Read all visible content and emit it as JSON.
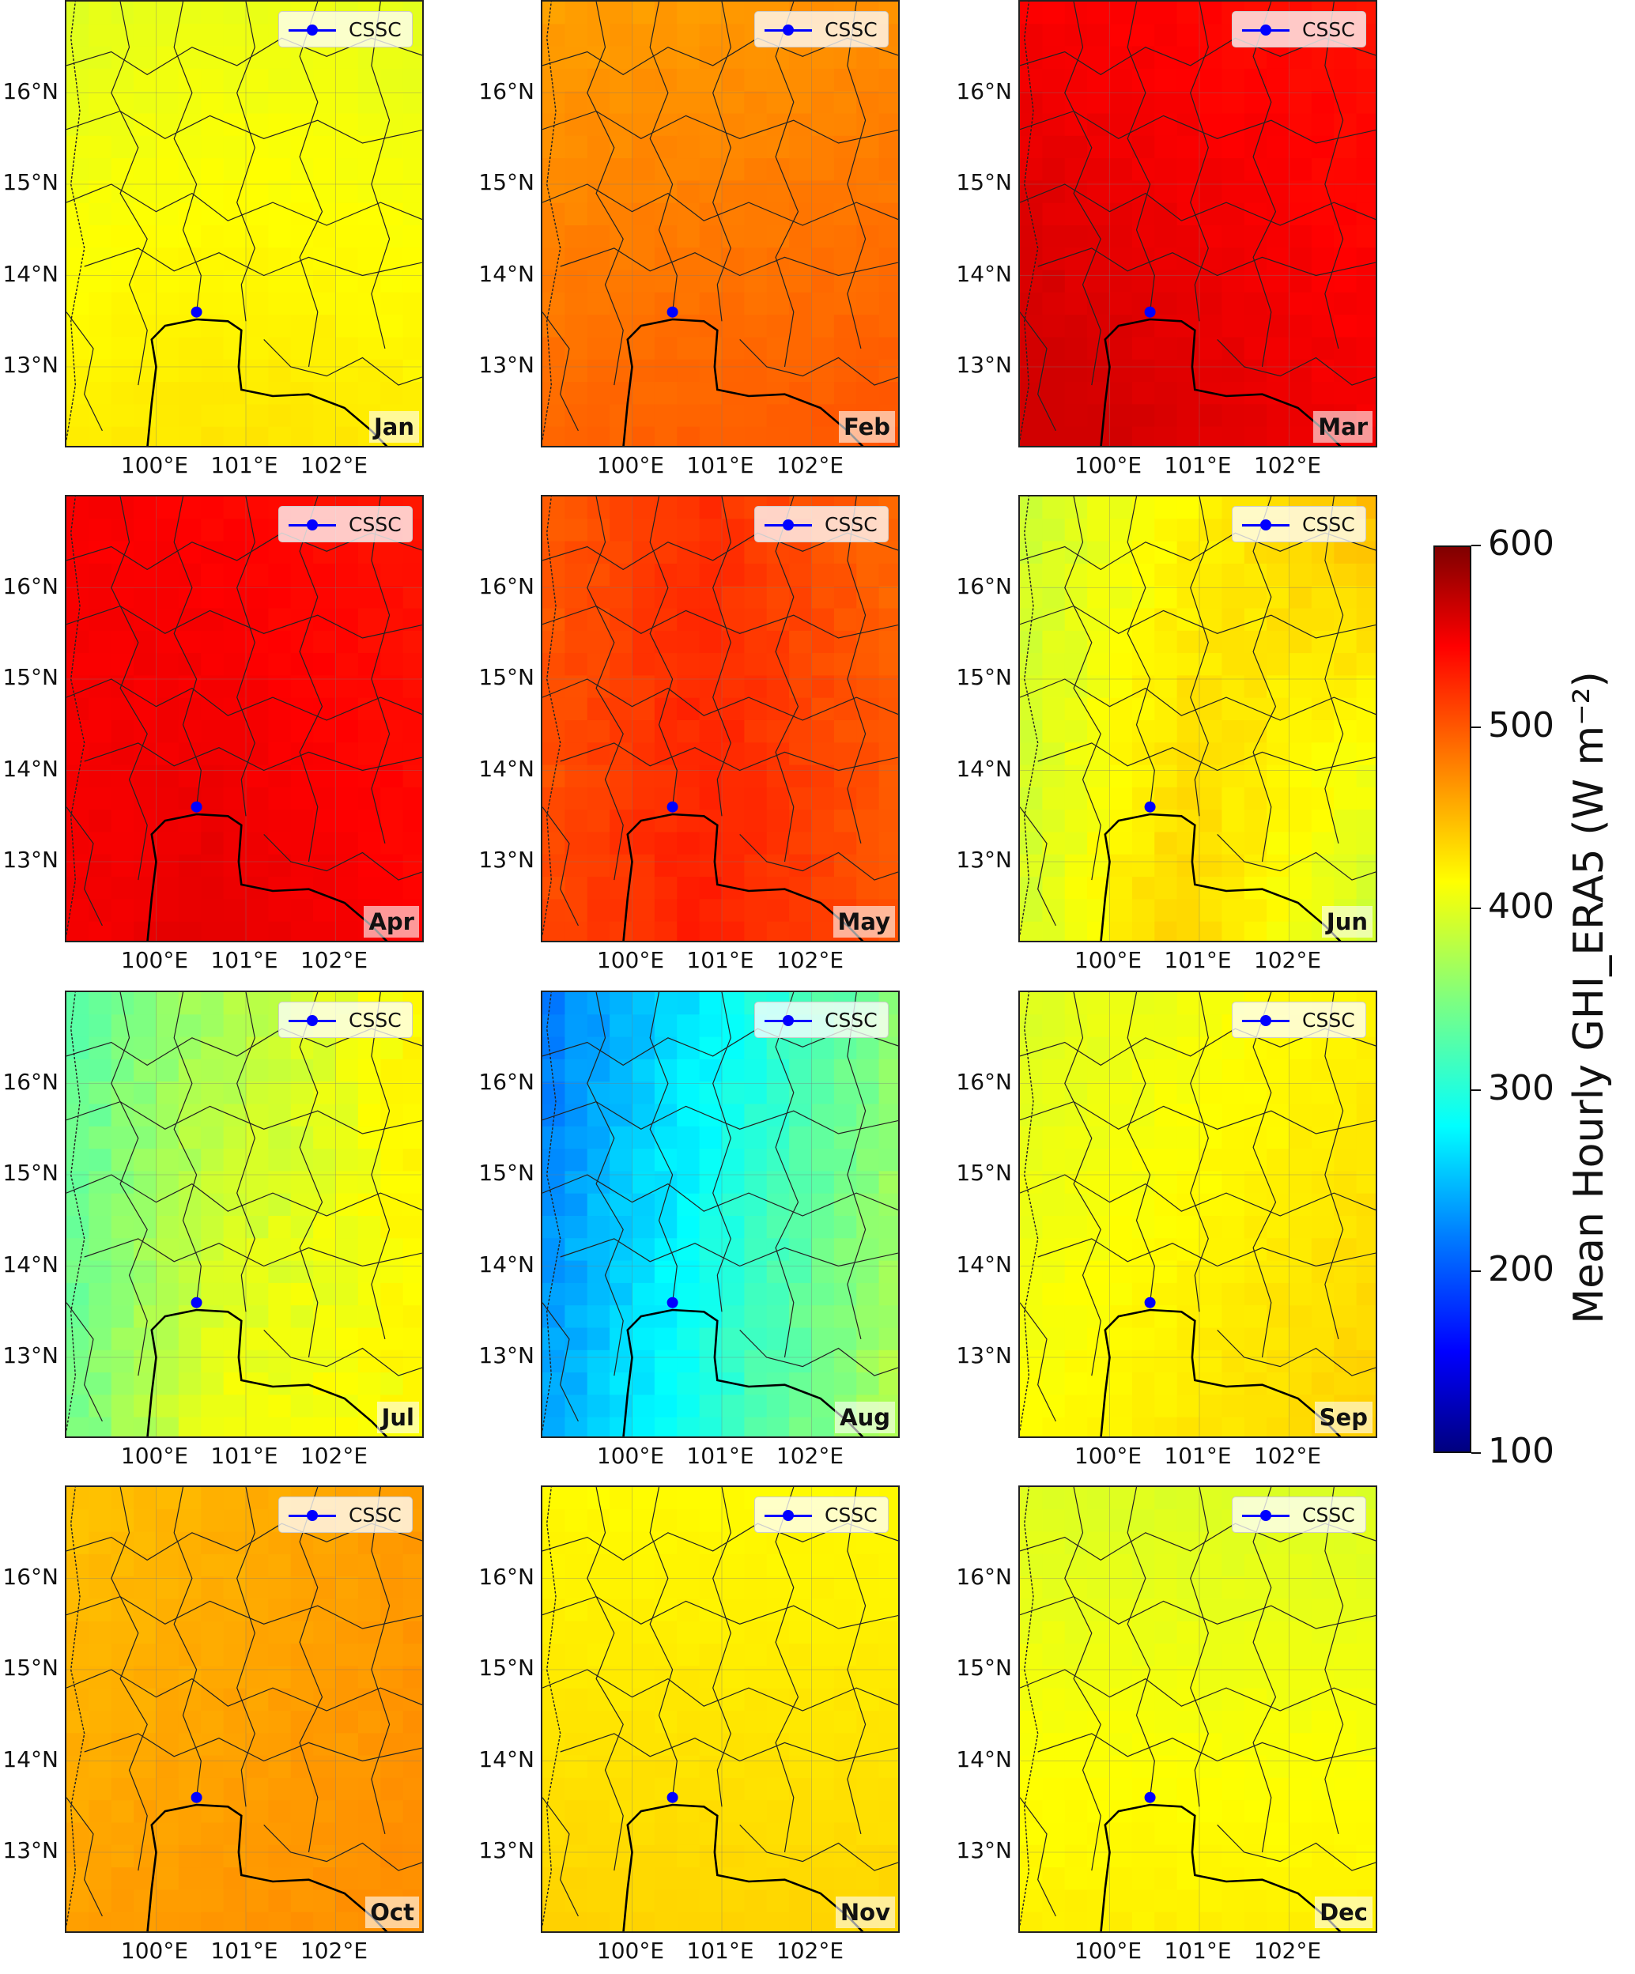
{
  "figure": {
    "legend_label": "CSSC",
    "y_ticks": [
      "16°N",
      "15°N",
      "14°N",
      "13°N"
    ],
    "x_ticks": [
      "100°E",
      "101°E",
      "102°E"
    ],
    "colorbar": {
      "title": "Mean Hourly GHI_ERA5 (W m⁻²)",
      "ticks": [
        "600",
        "500",
        "400",
        "300",
        "200",
        "100"
      ],
      "range": [
        100,
        600
      ],
      "colormap": "jet"
    }
  },
  "marker": {
    "name": "CSSC",
    "lon": 100.45,
    "lat": 13.6,
    "color": "#0000ff"
  },
  "map_extent": {
    "lon": [
      99.0,
      103.0
    ],
    "lat": [
      12.1,
      17.0
    ]
  },
  "panels": [
    {
      "month": "Jan",
      "ghi_range_approx": [
        380,
        430
      ]
    },
    {
      "month": "Feb",
      "ghi_range_approx": [
        440,
        500
      ]
    },
    {
      "month": "Mar",
      "ghi_range_approx": [
        490,
        560
      ]
    },
    {
      "month": "Apr",
      "ghi_range_approx": [
        500,
        560
      ]
    },
    {
      "month": "May",
      "ghi_range_approx": [
        440,
        540
      ]
    },
    {
      "month": "Jun",
      "ghi_range_approx": [
        360,
        470
      ]
    },
    {
      "month": "Jul",
      "ghi_range_approx": [
        300,
        460
      ]
    },
    {
      "month": "Aug",
      "ghi_range_approx": [
        210,
        380
      ]
    },
    {
      "month": "Sep",
      "ghi_range_approx": [
        370,
        440
      ]
    },
    {
      "month": "Oct",
      "ghi_range_approx": [
        420,
        480
      ]
    },
    {
      "month": "Nov",
      "ghi_range_approx": [
        400,
        440
      ]
    },
    {
      "month": "Dec",
      "ghi_range_approx": [
        380,
        430
      ]
    }
  ]
}
